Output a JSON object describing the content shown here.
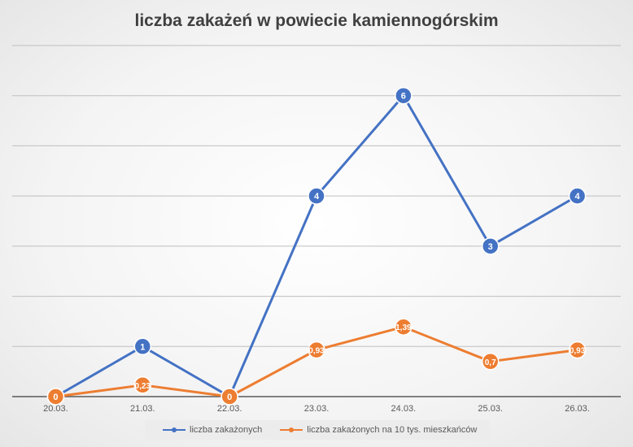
{
  "chart_data": {
    "type": "line",
    "title": "liczba zakażeń w powiecie kamiennogórskim",
    "categories": [
      "20.03.",
      "21.03.",
      "22.03.",
      "23.03.",
      "24.03.",
      "25.03.",
      "26.03."
    ],
    "ylim": [
      0,
      7
    ],
    "grid": true,
    "legend_position": "bottom",
    "series": [
      {
        "name": "liczba zakażonych",
        "color": "#4472C4",
        "values": [
          0,
          1,
          0,
          4,
          6,
          3,
          4
        ],
        "labels": [
          "0",
          "1",
          "0",
          "4",
          "6",
          "3",
          "4"
        ]
      },
      {
        "name": "liczba zakażonych na 10 tys. mieszkańców",
        "color": "#ED7D31",
        "values": [
          0,
          0.23,
          0,
          0.93,
          1.39,
          0.7,
          0.93
        ],
        "labels": [
          "0",
          "0,23",
          "0",
          "0,93",
          "1,39",
          "0,7",
          "0,93"
        ]
      }
    ]
  }
}
